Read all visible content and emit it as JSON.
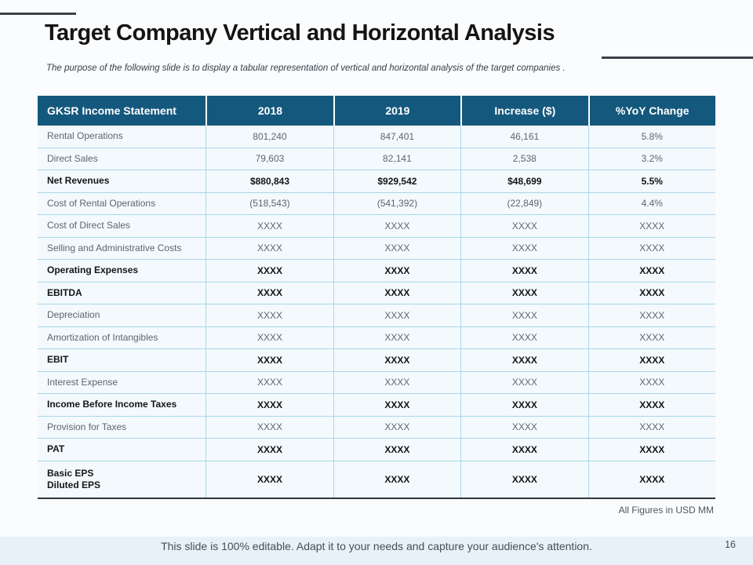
{
  "slide": {
    "title": "Target Company Vertical and Horizontal Analysis",
    "subtitle": "The purpose of the following slide is to display a tabular representation of vertical and horizontal analysis of the target companies .",
    "units_note": "All Figures in USD MM",
    "footer_text": "This slide is 100% editable. Adapt it to your needs and capture your audience's attention.",
    "page_number": "16"
  },
  "table": {
    "headers": [
      "GKSR Income Statement",
      "2018",
      "2019",
      "Increase ($)",
      "%YoY Change"
    ],
    "rows": [
      {
        "label": "Rental Operations",
        "values": [
          "801,240",
          "847,401",
          "46,161",
          "5.8%"
        ],
        "bold": false
      },
      {
        "label": "Direct Sales",
        "values": [
          "79,603",
          "82,141",
          "2,538",
          "3.2%"
        ],
        "bold": false
      },
      {
        "label": "Net Revenues",
        "values": [
          "$880,843",
          "$929,542",
          "$48,699",
          "5.5%"
        ],
        "bold": true
      },
      {
        "label": "Cost of Rental Operations",
        "values": [
          "(518,543)",
          "(541,392)",
          "(22,849)",
          "4.4%"
        ],
        "bold": false
      },
      {
        "label": "Cost of Direct Sales",
        "values": [
          "XXXX",
          "XXXX",
          "XXXX",
          "XXXX"
        ],
        "bold": false
      },
      {
        "label": "Selling and Administrative Costs",
        "values": [
          "XXXX",
          "XXXX",
          "XXXX",
          "XXXX"
        ],
        "bold": false
      },
      {
        "label": "Operating Expenses",
        "values": [
          "XXXX",
          "XXXX",
          "XXXX",
          "XXXX"
        ],
        "bold": true
      },
      {
        "label": "EBITDA",
        "values": [
          "XXXX",
          "XXXX",
          "XXXX",
          "XXXX"
        ],
        "bold": true
      },
      {
        "label": "Depreciation",
        "values": [
          "XXXX",
          "XXXX",
          "XXXX",
          "XXXX"
        ],
        "bold": false
      },
      {
        "label": "Amortization of Intangibles",
        "values": [
          "XXXX",
          "XXXX",
          "XXXX",
          "XXXX"
        ],
        "bold": false
      },
      {
        "label": "EBIT",
        "values": [
          "XXXX",
          "XXXX",
          "XXXX",
          "XXXX"
        ],
        "bold": true
      },
      {
        "label": "Interest Expense",
        "values": [
          "XXXX",
          "XXXX",
          "XXXX",
          "XXXX"
        ],
        "bold": false
      },
      {
        "label": "Income Before Income Taxes",
        "values": [
          "XXXX",
          "XXXX",
          "XXXX",
          "XXXX"
        ],
        "bold": true
      },
      {
        "label": "Provision for Taxes",
        "values": [
          "XXXX",
          "XXXX",
          "XXXX",
          "XXXX"
        ],
        "bold": false
      },
      {
        "label": "PAT",
        "values": [
          "XXXX",
          "XXXX",
          "XXXX",
          "XXXX"
        ],
        "bold": true
      },
      {
        "label": "Basic EPS\nDiluted EPS",
        "values": [
          "XXXX",
          "XXXX",
          "XXXX",
          "XXXX"
        ],
        "bold": true,
        "tall": true
      }
    ]
  },
  "colors": {
    "header_bg": "#14587D",
    "row_divider": "#A9D8E8",
    "row_bg": "#F3F9FC",
    "table_bottom_border": "#2E3640",
    "accent_line": "#3D4248",
    "footer_band": "#E8F1F8"
  }
}
